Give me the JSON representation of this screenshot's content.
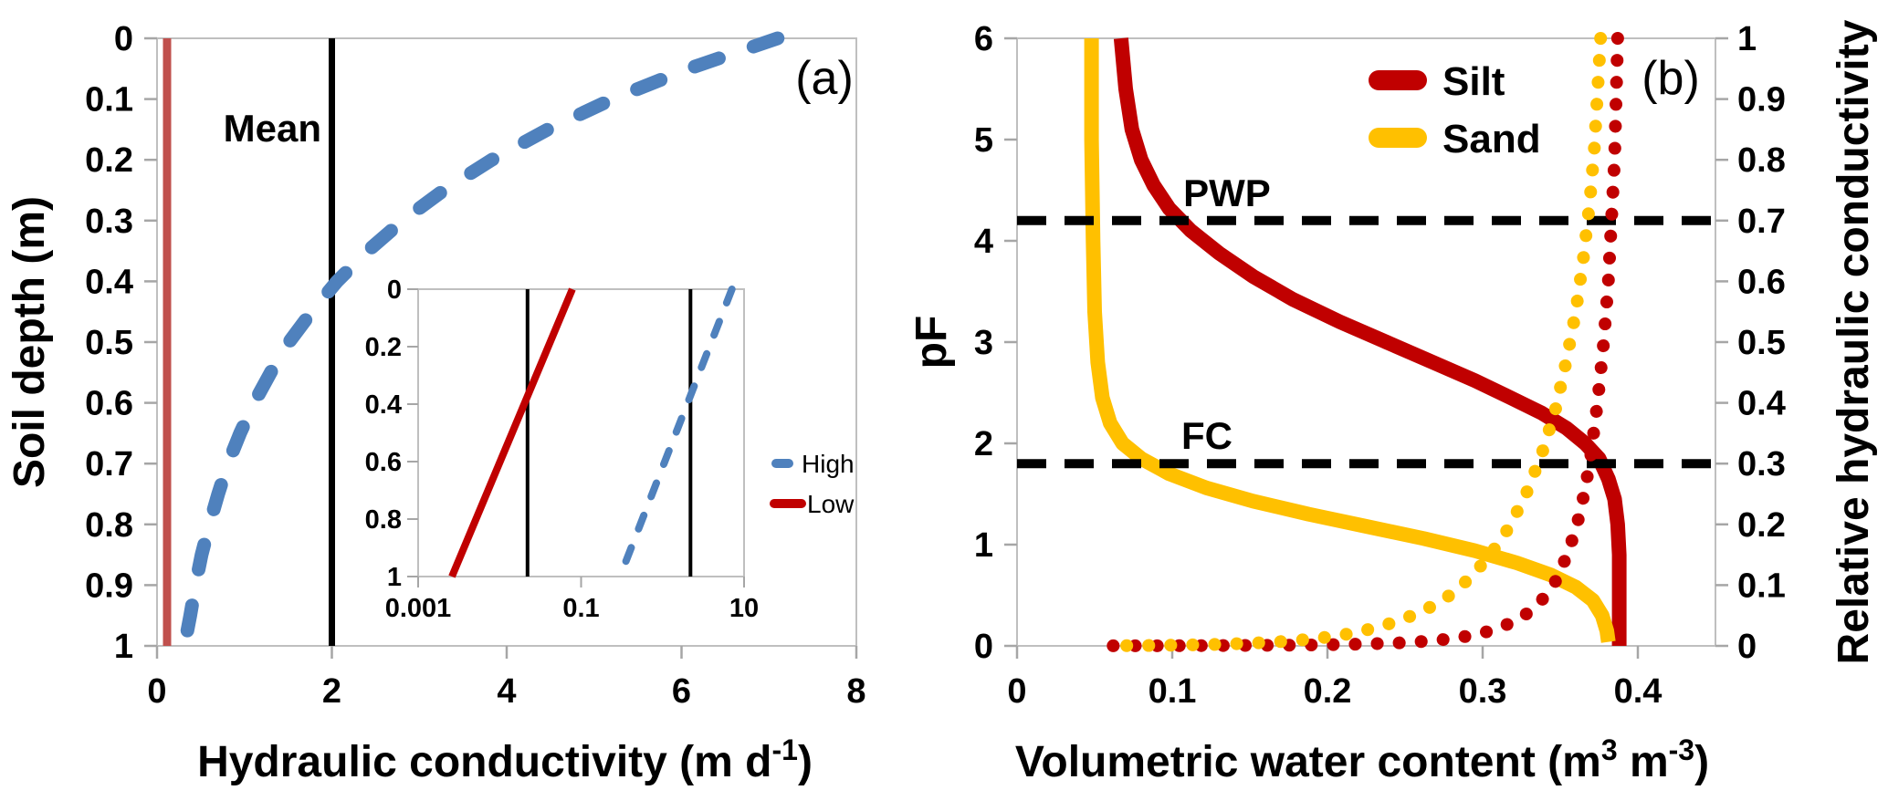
{
  "figure": {
    "background": "#FFFFFF",
    "axis_color": "#BFBFBF",
    "tick_color": "#A6A6A6",
    "text_color": "#000000"
  },
  "chart_data": [
    {
      "id": "panel-a",
      "type": "line",
      "panel_label": "(a)",
      "xlabel_parts": [
        "Hydraulic conductivity (m d",
        "-1",
        ")"
      ],
      "ylabel": "Soil depth (m)",
      "x": {
        "min": 0,
        "max": 8,
        "ticks": [
          "0",
          "2",
          "4",
          "6",
          "8"
        ]
      },
      "y": {
        "min": 0,
        "max": 1,
        "direction": "down",
        "ticks": [
          "0",
          "0.1",
          "0.2",
          "0.3",
          "0.4",
          "0.5",
          "0.6",
          "0.7",
          "0.8",
          "0.9",
          "1"
        ]
      },
      "grid": false,
      "annotations": {
        "mean": {
          "label": "Mean",
          "value": 2
        }
      },
      "series": [
        {
          "name": "High",
          "color": "#4F81BD",
          "style": "dashed",
          "width": 15,
          "points": [
            [
              0,
              7.1
            ],
            [
              0.05,
              6.08
            ],
            [
              0.1,
              5.21
            ],
            [
              0.15,
              4.47
            ],
            [
              0.2,
              3.83
            ],
            [
              0.25,
              3.28
            ],
            [
              0.3,
              2.81
            ],
            [
              0.35,
              2.41
            ],
            [
              0.4,
              2.06
            ],
            [
              0.45,
              1.77
            ],
            [
              0.5,
              1.51
            ],
            [
              0.55,
              1.3
            ],
            [
              0.6,
              1.11
            ],
            [
              0.65,
              0.95
            ],
            [
              0.7,
              0.81
            ],
            [
              0.75,
              0.7
            ],
            [
              0.8,
              0.6
            ],
            [
              0.85,
              0.51
            ],
            [
              0.9,
              0.44
            ],
            [
              0.95,
              0.38
            ],
            [
              0.98,
              0.34
            ]
          ]
        },
        {
          "name": "Low",
          "color": "#C0504D",
          "style": "solid",
          "width": 9,
          "points": [
            [
              0,
              0.115
            ],
            [
              1,
              0.115
            ]
          ]
        }
      ]
    },
    {
      "id": "panel-a-inset",
      "type": "line",
      "xscale": "log",
      "x": {
        "min": 0.001,
        "max": 10,
        "ticks": [
          "0.001",
          "0.1",
          "10"
        ]
      },
      "y": {
        "min": 0,
        "max": 1,
        "direction": "down",
        "ticks": [
          "0",
          "0.2",
          "0.4",
          "0.6",
          "0.8",
          "1"
        ]
      },
      "grid": false,
      "mean_vlines": [
        0.022,
        2.2
      ],
      "legend_position": "right-outside",
      "series": [
        {
          "name": "High",
          "color": "#4F81BD",
          "style": "dashed",
          "width": 8,
          "points": [
            [
              0,
              7.1
            ],
            [
              1,
              0.3
            ]
          ]
        },
        {
          "name": "Low",
          "color": "#C00000",
          "style": "solid",
          "width": 8,
          "points": [
            [
              0,
              0.078
            ],
            [
              1,
              0.0026
            ]
          ]
        }
      ]
    },
    {
      "id": "panel-b",
      "type": "line",
      "panel_label": "(b)",
      "xlabel_parts": [
        "Volumetric water content  (m",
        "3",
        " m",
        "-3",
        ")"
      ],
      "ylabel_left": "pF",
      "ylabel_right": "Relative hydraulic conductivity",
      "x": {
        "min": 0,
        "max": 0.45,
        "ticks": [
          "0",
          "0.1",
          "0.2",
          "0.3",
          "0.4"
        ]
      },
      "y_left": {
        "min": 0,
        "max": 6,
        "ticks": [
          "6",
          "5",
          "4",
          "3",
          "2",
          "1",
          "0"
        ]
      },
      "y_right": {
        "min": 0,
        "max": 1,
        "ticks": [
          "1",
          "0.9",
          "0.8",
          "0.7",
          "0.6",
          "0.5",
          "0.4",
          "0.3",
          "0.2",
          "0.1",
          "0"
        ]
      },
      "grid": false,
      "annotations": {
        "pwp": {
          "label": "PWP",
          "pF": 4.2
        },
        "fc": {
          "label": "FC",
          "pF": 1.8
        }
      },
      "legend": [
        {
          "label": "Silt",
          "color": "#C00000"
        },
        {
          "label": "Sand",
          "color": "#FFC000"
        }
      ],
      "series": [
        {
          "name": "Silt retention",
          "axis": "left",
          "color": "#C00000",
          "style": "solid",
          "width": 16,
          "points": [
            [
              0.388,
              0
            ],
            [
              0.388,
              0.9
            ],
            [
              0.387,
              1.2
            ],
            [
              0.385,
              1.45
            ],
            [
              0.381,
              1.65
            ],
            [
              0.375,
              1.85
            ],
            [
              0.366,
              2.0
            ],
            [
              0.354,
              2.15
            ],
            [
              0.338,
              2.3
            ],
            [
              0.318,
              2.45
            ],
            [
              0.295,
              2.62
            ],
            [
              0.268,
              2.8
            ],
            [
              0.238,
              3.0
            ],
            [
              0.208,
              3.2
            ],
            [
              0.178,
              3.42
            ],
            [
              0.152,
              3.65
            ],
            [
              0.13,
              3.88
            ],
            [
              0.112,
              4.1
            ],
            [
              0.098,
              4.32
            ],
            [
              0.088,
              4.55
            ],
            [
              0.08,
              4.8
            ],
            [
              0.074,
              5.1
            ],
            [
              0.07,
              5.5
            ],
            [
              0.067,
              6.0
            ]
          ]
        },
        {
          "name": "Sand retention",
          "axis": "left",
          "color": "#FFC000",
          "style": "solid",
          "width": 16,
          "points": [
            [
              0.381,
              0.04
            ],
            [
              0.38,
              0.15
            ],
            [
              0.377,
              0.3
            ],
            [
              0.371,
              0.45
            ],
            [
              0.36,
              0.58
            ],
            [
              0.344,
              0.7
            ],
            [
              0.322,
              0.82
            ],
            [
              0.295,
              0.94
            ],
            [
              0.262,
              1.06
            ],
            [
              0.225,
              1.18
            ],
            [
              0.188,
              1.3
            ],
            [
              0.152,
              1.43
            ],
            [
              0.122,
              1.56
            ],
            [
              0.098,
              1.7
            ],
            [
              0.08,
              1.85
            ],
            [
              0.068,
              2.0
            ],
            [
              0.06,
              2.2
            ],
            [
              0.055,
              2.45
            ],
            [
              0.052,
              2.8
            ],
            [
              0.05,
              3.3
            ],
            [
              0.049,
              4.0
            ],
            [
              0.048,
              5.0
            ],
            [
              0.048,
              6.0
            ]
          ]
        },
        {
          "name": "Silt relative K",
          "axis": "right",
          "color": "#C00000",
          "style": "dotted",
          "width": 14,
          "points": [
            [
              0.387,
              1.0
            ],
            [
              0.386,
              0.9
            ],
            [
              0.385,
              0.8
            ],
            [
              0.383,
              0.7
            ],
            [
              0.381,
              0.6
            ],
            [
              0.378,
              0.5
            ],
            [
              0.374,
              0.4
            ],
            [
              0.369,
              0.3
            ],
            [
              0.363,
              0.22
            ],
            [
              0.356,
              0.16
            ],
            [
              0.348,
              0.11
            ],
            [
              0.338,
              0.075
            ],
            [
              0.327,
              0.05
            ],
            [
              0.314,
              0.033
            ],
            [
              0.3,
              0.021
            ],
            [
              0.284,
              0.013
            ],
            [
              0.266,
              0.008
            ],
            [
              0.246,
              0.005
            ],
            [
              0.224,
              0.003
            ],
            [
              0.2,
              0.002
            ],
            [
              0.175,
              0.001
            ],
            [
              0.148,
              0.0007
            ],
            [
              0.12,
              0.0004
            ],
            [
              0.09,
              0.0002
            ],
            [
              0.06,
              0.0001
            ]
          ]
        },
        {
          "name": "Sand relative K",
          "axis": "right",
          "color": "#FFC000",
          "style": "dotted",
          "width": 14,
          "points": [
            [
              0.376,
              1.0
            ],
            [
              0.374,
              0.91
            ],
            [
              0.372,
              0.82
            ],
            [
              0.369,
              0.73
            ],
            [
              0.365,
              0.64
            ],
            [
              0.36,
              0.55
            ],
            [
              0.354,
              0.47
            ],
            [
              0.347,
              0.39
            ],
            [
              0.338,
              0.315
            ],
            [
              0.328,
              0.25
            ],
            [
              0.317,
              0.195
            ],
            [
              0.305,
              0.15
            ],
            [
              0.292,
              0.112
            ],
            [
              0.278,
              0.082
            ],
            [
              0.263,
              0.059
            ],
            [
              0.247,
              0.042
            ],
            [
              0.23,
              0.029
            ],
            [
              0.212,
              0.019
            ],
            [
              0.193,
              0.012
            ],
            [
              0.173,
              0.0075
            ],
            [
              0.152,
              0.0045
            ],
            [
              0.13,
              0.0025
            ],
            [
              0.107,
              0.0013
            ],
            [
              0.083,
              0.0006
            ],
            [
              0.058,
              0.0002
            ]
          ]
        }
      ]
    }
  ]
}
